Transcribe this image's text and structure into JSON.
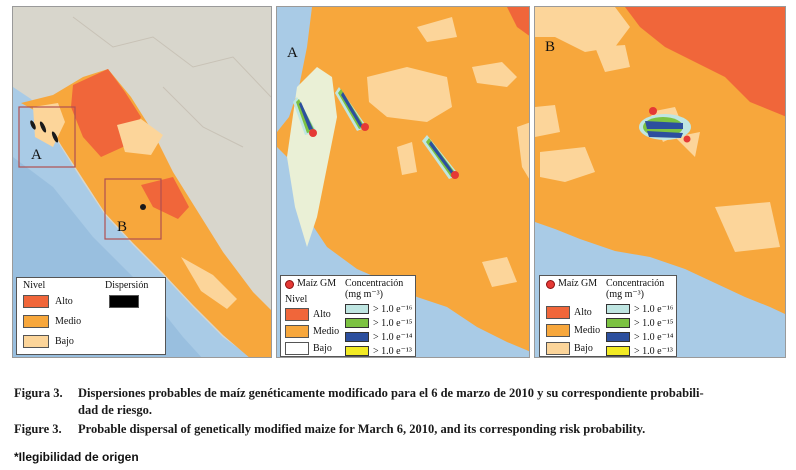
{
  "panel_overview": {
    "label_a": "A",
    "label_b": "B",
    "legend": {
      "nivel_title": "Nivel",
      "dispersion_title": "Dispersión",
      "alto": "Alto",
      "medio": "Medio",
      "bajo": "Bajo"
    }
  },
  "panel_a": {
    "label": "A",
    "legend": {
      "maiz_gm": "Maíz GM",
      "concentracion": "Concentración",
      "units": "(mg m⁻³)",
      "nivel": "Nivel",
      "alto": "Alto",
      "medio": "Medio",
      "bajo": "Bajo",
      "conc_values": [
        "> 1.0 e⁻¹⁶",
        "> 1.0 e⁻¹⁵",
        "> 1.0 e⁻¹⁴",
        "> 1.0 e⁻¹³"
      ]
    }
  },
  "panel_b": {
    "label": "B",
    "legend": {
      "maiz_gm": "Maíz GM",
      "concentracion": "Concentración",
      "units": "(mg m⁻³)",
      "alto": "Alto",
      "medio": "Medio",
      "bajo": "Bajo",
      "conc_values": [
        "> 1.0 e⁻¹⁶",
        "> 1.0 e⁻¹⁵",
        "> 1.0 e⁻¹⁴",
        "> 1.0 e⁻¹³"
      ]
    }
  },
  "colors": {
    "alto": "#f0663a",
    "medio": "#f7a73c",
    "bajo": "#fcd59a",
    "sea": "#a9cbe6",
    "land": "#d9d7cf",
    "conc_1": "#bfe6e2",
    "conc_2": "#7cc242",
    "conc_3": "#2c4f9e",
    "conc_4": "#f2ea24"
  },
  "caption": {
    "es_label": "Figura 3.",
    "es_line1": "Dispersiones probables de maíz genéticamente modificado para el 6 de marzo de 2010 y su correspondiente probabili-",
    "es_line2": "dad de riesgo.",
    "en_label": "Figure 3.",
    "en_line1": "Probable dispersal of genetically modified maize for March 6, 2010, and its corresponding risk probability."
  },
  "note": "*Ilegibilidad de origen"
}
